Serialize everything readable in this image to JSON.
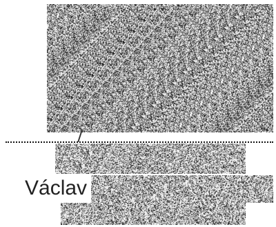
{
  "label": {
    "name": "Václav"
  },
  "colors": {
    "background": "#ffffff",
    "noise_dark": "#1a1a1a",
    "noise_light": "#f2f2f2",
    "text": "#222222"
  }
}
